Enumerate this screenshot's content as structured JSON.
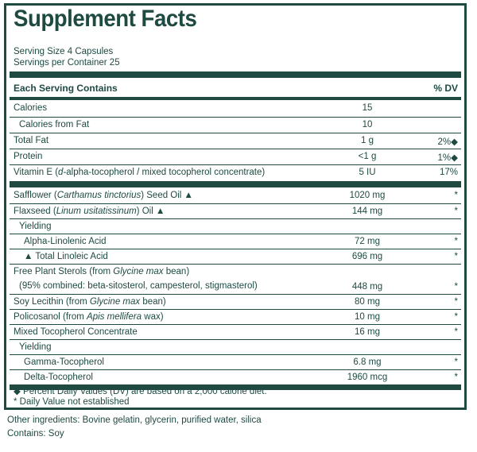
{
  "title": "Supplement Facts",
  "serving_size": "Serving Size 4 Capsules",
  "servings_per_container": "Servings per Container 25",
  "header": {
    "left": "Each Serving Contains",
    "right": "% DV"
  },
  "rows": [
    {
      "name": "Calories",
      "amount": "15",
      "dv": ""
    },
    {
      "name": "Calories from Fat",
      "amount": "10",
      "dv": ""
    },
    {
      "name": "Total Fat",
      "amount": "1 g",
      "dv": "2%◆"
    },
    {
      "name": "Protein",
      "amount": "<1 g",
      "dv": "1%◆"
    },
    {
      "name_pre": "Vitamin E (",
      "name_it": "d",
      "name_post": "-alpha-tocopherol / mixed tocopherol concentrate)",
      "amount": "5 IU",
      "dv": "17%"
    },
    {
      "name_pre": "Safflower (",
      "name_it": "Carthamus tinctorius",
      "name_post": ") Seed Oil ▲",
      "amount": "1020 mg",
      "dv": "*"
    },
    {
      "name_pre": "Flaxseed (",
      "name_it": "Linum usitatissinum",
      "name_post": ") Oil ▲",
      "amount": "144 mg",
      "dv": "*"
    },
    {
      "name": "Yielding",
      "amount": "",
      "dv": ""
    },
    {
      "name": "Alpha-Linolenic Acid",
      "amount": "72 mg",
      "dv": "*"
    },
    {
      "name": "▲ Total Linoleic Acid",
      "amount": "696 mg",
      "dv": "*"
    },
    {
      "name_pre": "Free Plant Sterols (from ",
      "name_it": "Glycine max",
      "name_post": " bean)",
      "line2": "(95% combined: beta-sitosterol, campesterol, stigmasterol)",
      "amount": "448 mg",
      "dv": "*"
    },
    {
      "name_pre": "Soy Lecithin (from ",
      "name_it": "Glycine max",
      "name_post": " bean)",
      "amount": "80 mg",
      "dv": "*"
    },
    {
      "name_pre": "Policosanol (from ",
      "name_it": "Apis mellifera",
      "name_post": " wax)",
      "amount": "10 mg",
      "dv": "*"
    },
    {
      "name": "Mixed Tocopherol Concentrate",
      "amount": "16 mg",
      "dv": "*"
    },
    {
      "name": "Yielding",
      "amount": "",
      "dv": ""
    },
    {
      "name": "Gamma-Tocopherol",
      "amount": "6.8 mg",
      "dv": "*"
    },
    {
      "name": "Delta-Tocopherol",
      "amount": "1960 mcg",
      "dv": "*"
    }
  ],
  "footnotes": [
    "◆  Percent Daily Values (DV) are based on a 2,000 calorie diet.",
    "*   Daily Value not established"
  ],
  "other_ingredients": "Other ingredients: Bovine gelatin, glycerin, purified water, silica",
  "contains": "Contains: Soy",
  "colors": {
    "ink": "#1e4a42"
  }
}
